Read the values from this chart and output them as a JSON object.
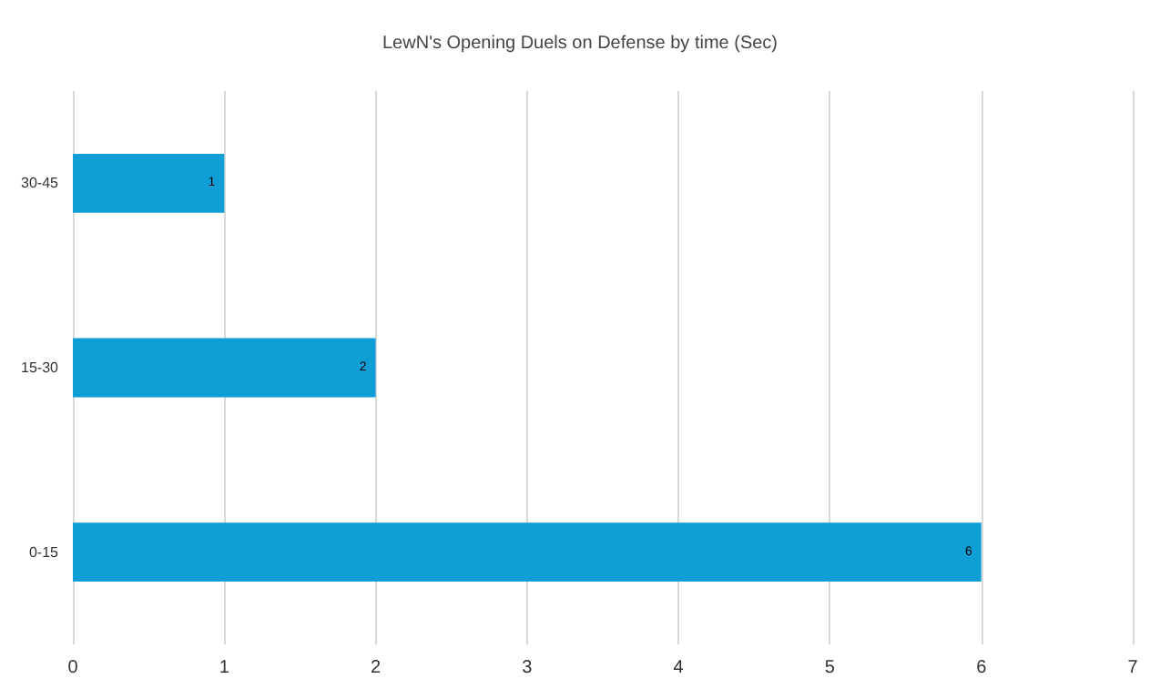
{
  "chart_data": {
    "type": "bar",
    "orientation": "horizontal",
    "title": "LewN's Opening Duels on Defense by time (Sec)",
    "categories": [
      "30-45",
      "15-30",
      "0-15"
    ],
    "values": [
      1,
      2,
      6
    ],
    "color": "#0f9ed5",
    "xlim": [
      0,
      7
    ],
    "xticks": [
      0,
      1,
      2,
      3,
      4,
      5,
      6,
      7
    ],
    "grid": "x",
    "data_labels": true
  }
}
